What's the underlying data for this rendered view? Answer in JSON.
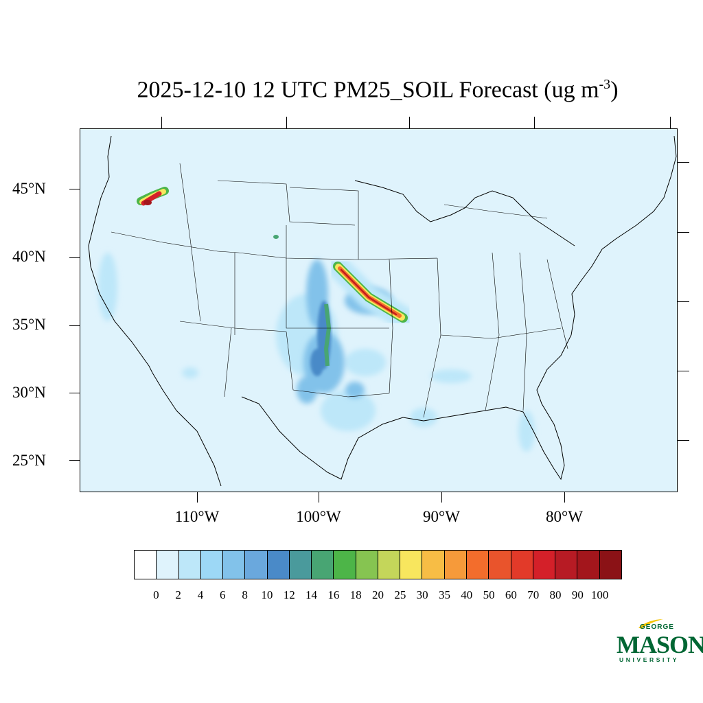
{
  "title": {
    "main": "2025-12-10 12 UTC PM25_SOIL Forecast (ug m",
    "sup": "-3",
    "close": ")"
  },
  "lat_labels": [
    "45°N",
    "40°N",
    "35°N",
    "30°N",
    "25°N"
  ],
  "lon_labels": [
    "110°W",
    "100°W",
    "90°W",
    "80°W"
  ],
  "colorbar": {
    "colors": [
      "#ffffff",
      "#dff3fc",
      "#bde7f9",
      "#9dd8f6",
      "#82c2ea",
      "#6aa8dd",
      "#4a8ac8",
      "#4a9a9c",
      "#48a573",
      "#4db548",
      "#86c451",
      "#c4d65a",
      "#f8e65e",
      "#f7bd45",
      "#f69a3a",
      "#f36d2c",
      "#e9542c",
      "#e23a29",
      "#d42029",
      "#b71b24",
      "#a3161c",
      "#8b1216"
    ],
    "labels": [
      "0",
      "2",
      "4",
      "6",
      "8",
      "10",
      "12",
      "14",
      "16",
      "18",
      "20",
      "25",
      "30",
      "35",
      "40",
      "50",
      "60",
      "70",
      "80",
      "90",
      "100"
    ]
  },
  "logo": {
    "george": "GEORGE",
    "mason": "MASON",
    "university": "UNIVERSITY",
    "color": "#006633",
    "accent": "#f5c400"
  },
  "colors": {
    "background": "#dff3fc",
    "plume_core": "#c41e1e"
  }
}
